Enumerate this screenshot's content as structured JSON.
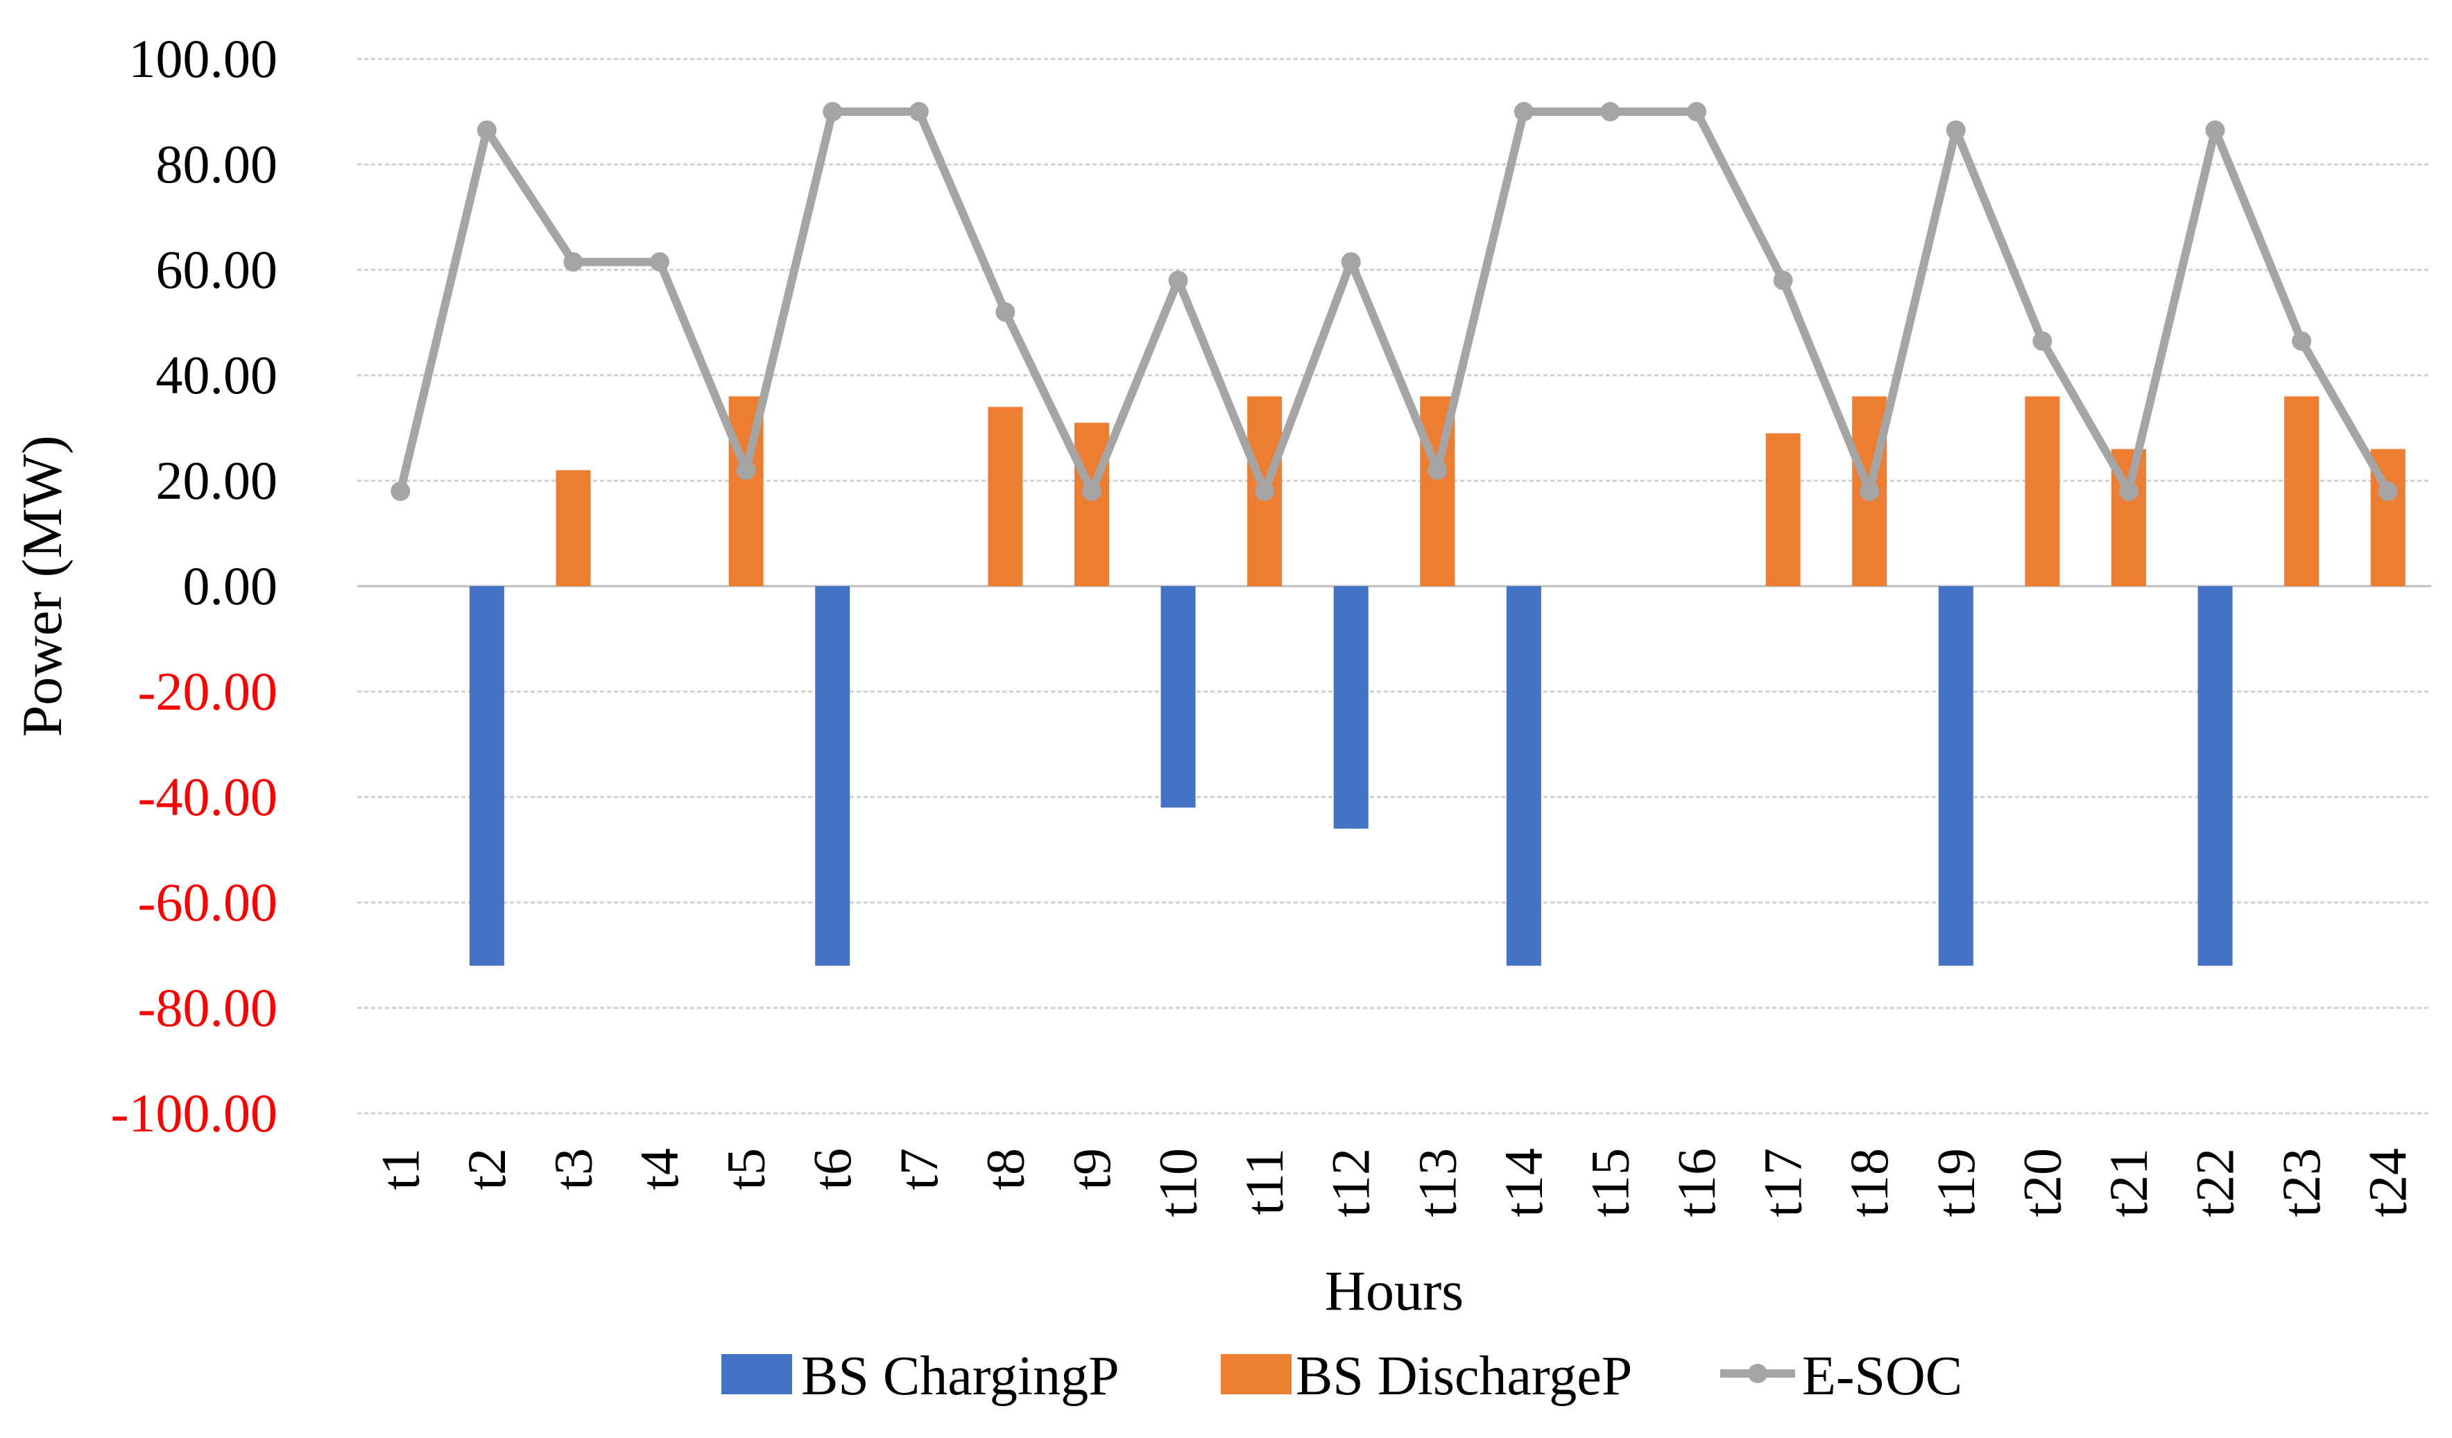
{
  "chart_data": {
    "type": "bar",
    "title": "",
    "xlabel": "Hours",
    "ylabel": "Power (MW)",
    "ylim": [
      -100,
      100
    ],
    "ytick_step": 20,
    "ytick_labels": [
      "100.00",
      "80.00",
      "60.00",
      "40.00",
      "20.00",
      "0.00",
      "-20.00",
      "-40.00",
      "-60.00",
      "-80.00",
      "-100.00"
    ],
    "negative_tick_color": "#ff0000",
    "categories": [
      "t1",
      "t2",
      "t3",
      "t4",
      "t5",
      "t6",
      "t7",
      "t8",
      "t9",
      "t10",
      "t11",
      "t12",
      "t13",
      "t14",
      "t15",
      "t16",
      "t17",
      "t18",
      "t19",
      "t20",
      "t21",
      "t22",
      "t23",
      "t24"
    ],
    "series": [
      {
        "name": "BS ChargingP",
        "kind": "bar",
        "color": "#4472c4",
        "values": [
          0,
          -72,
          0,
          0,
          0,
          -72,
          0,
          0,
          0,
          -42,
          0,
          -46,
          0,
          -72,
          0,
          0,
          0,
          0,
          -72,
          0,
          0,
          -72,
          0,
          0
        ]
      },
      {
        "name": "BS DischargeP",
        "kind": "bar",
        "color": "#ed7d31",
        "values": [
          0,
          0,
          22,
          0,
          36,
          0,
          0,
          34,
          31,
          0,
          36,
          0,
          36,
          0,
          0,
          0,
          29,
          36,
          0,
          36,
          26,
          0,
          36,
          26
        ]
      },
      {
        "name": "E-SOC",
        "kind": "line",
        "color": "#a5a5a5",
        "values": [
          18,
          86.5,
          61.5,
          61.5,
          22,
          90,
          90,
          52,
          18,
          58,
          18,
          61.5,
          22,
          90,
          90,
          90,
          58,
          18,
          86.5,
          46.5,
          18,
          86.5,
          46.5,
          18
        ]
      }
    ],
    "legend_position": "bottom-center",
    "grid": true
  }
}
